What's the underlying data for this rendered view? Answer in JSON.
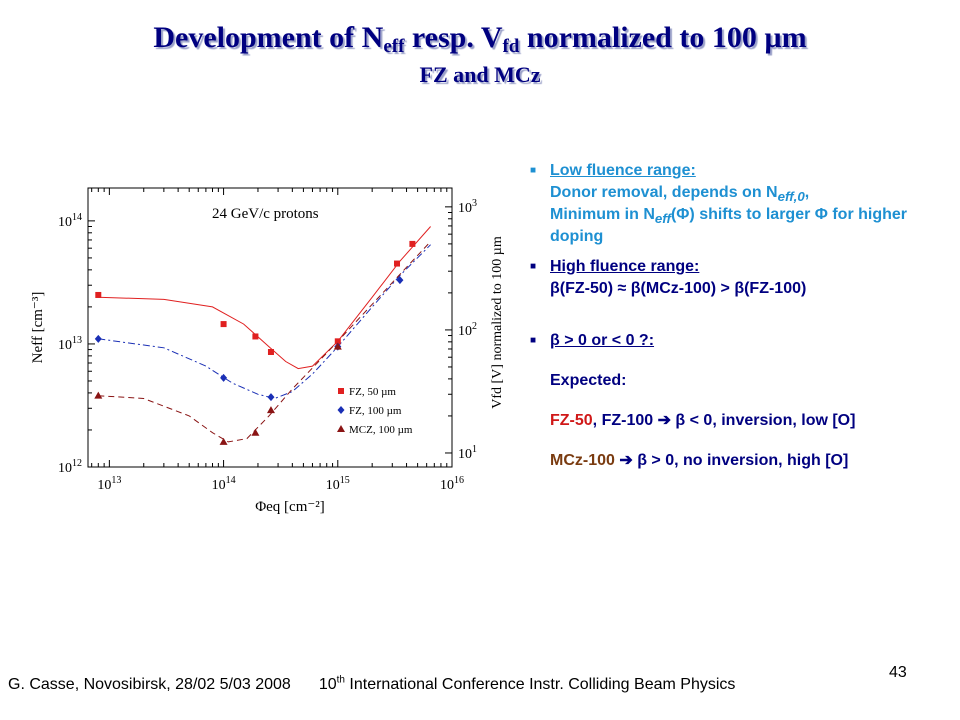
{
  "slide": {
    "title_pre": "Development of N",
    "title_sub1": "eff",
    "title_mid": " resp. V",
    "title_sub2": "fd",
    "title_post": " normalized to 100 µm",
    "subtitle": "FZ and MCz",
    "page_number": "43",
    "footer_author": "G. Casse, Novosibirsk, 28/02 5/03 2008",
    "footer_conf_pre": "10",
    "footer_conf_sup": "th",
    "footer_conf_post": " International Conference Instr. Colliding Beam Physics"
  },
  "bullets": {
    "low": {
      "heading": "Low fluence range:",
      "line1_pre": "Donor removal, depends on N",
      "line1_sub": "eff,0",
      "line1_post": ",",
      "line2_pre": "Minimum in N",
      "line2_sub": "eff",
      "line2_post": "(Φ) shifts to larger Φ for higher doping"
    },
    "high": {
      "heading": "High fluence range:",
      "text": "β(FZ-50) ≈ β(MCz-100) > β(FZ-100)"
    },
    "beta": {
      "heading": "β > 0 or < 0 ?:",
      "expected": "Expected:",
      "fz_label": "FZ-50",
      "fz_rest": ", FZ-100 ➔ β < 0, inversion, low [O]",
      "mcz_label": "MCz-100",
      "mcz_rest": " ➔ β > 0, no inversion, high [O]"
    }
  },
  "chart_data": {
    "type": "scatter",
    "annotation": "24 GeV/c protons",
    "xlabel": "Φeq [cm⁻²]",
    "ylabel": "Neff [cm⁻³]",
    "ylabel_right": "Vfd [V] normalized to 100 µm",
    "x_log": true,
    "y_log": true,
    "xlim": [
      6500000000000.0,
      1e+16
    ],
    "ylim": [
      1000000000000.0,
      185000000000000.0
    ],
    "x_ticks": [
      {
        "value": 10000000000000.0,
        "base": "10",
        "exp": "13"
      },
      {
        "value": 100000000000000.0,
        "base": "10",
        "exp": "14"
      },
      {
        "value": 1000000000000000.0,
        "base": "10",
        "exp": "15"
      },
      {
        "value": 1e+16,
        "base": "10",
        "exp": "16"
      }
    ],
    "y_ticks": [
      {
        "value": 1000000000000.0,
        "base": "10",
        "exp": "12"
      },
      {
        "value": 10000000000000.0,
        "base": "10",
        "exp": "13"
      },
      {
        "value": 100000000000000.0,
        "base": "10",
        "exp": "14"
      }
    ],
    "y2_ticks": [
      {
        "value": 1300000000000.0,
        "base": "10",
        "exp": "1"
      },
      {
        "value": 13000000000000.0,
        "base": "10",
        "exp": "2"
      },
      {
        "value": 130000000000000.0,
        "base": "10",
        "exp": "3"
      }
    ],
    "series": [
      {
        "name": "FZ, 50 µm",
        "color": "#e02020",
        "marker": "square",
        "line": "solid",
        "points": [
          [
            8000000000000.0,
            25000000000000.0
          ],
          [
            100000000000000.0,
            14500000000000.0
          ],
          [
            190000000000000.0,
            11500000000000.0
          ],
          [
            260000000000000.0,
            8600000000000.0
          ],
          [
            1000000000000000.0,
            10500000000000.0
          ],
          [
            3300000000000000.0,
            45000000000000.0
          ],
          [
            4500000000000000.0,
            65000000000000.0
          ]
        ],
        "fit": [
          [
            8000000000000.0,
            24000000000000.0
          ],
          [
            30000000000000.0,
            23000000000000.0
          ],
          [
            80000000000000.0,
            20000000000000.0
          ],
          [
            150000000000000.0,
            14500000000000.0
          ],
          [
            250000000000000.0,
            9500000000000.0
          ],
          [
            350000000000000.0,
            7200000000000.0
          ],
          [
            450000000000000.0,
            6300000000000.0
          ],
          [
            600000000000000.0,
            6600000000000.0
          ],
          [
            1000000000000000.0,
            10500000000000.0
          ],
          [
            2000000000000000.0,
            24000000000000.0
          ],
          [
            3500000000000000.0,
            47000000000000.0
          ],
          [
            6500000000000000.0,
            90000000000000.0
          ]
        ]
      },
      {
        "name": "FZ, 100 µm",
        "color": "#1a2fb5",
        "marker": "diamond",
        "line": "dashdot",
        "points": [
          [
            8000000000000.0,
            11000000000000.0
          ],
          [
            100000000000000.0,
            5300000000000.0
          ],
          [
            260000000000000.0,
            3700000000000.0
          ],
          [
            1000000000000000.0,
            9500000000000.0
          ],
          [
            3500000000000000.0,
            33000000000000.0
          ]
        ],
        "fit": [
          [
            8000000000000.0,
            11000000000000.0
          ],
          [
            30000000000000.0,
            9300000000000.0
          ],
          [
            70000000000000.0,
            6600000000000.0
          ],
          [
            120000000000000.0,
            4800000000000.0
          ],
          [
            200000000000000.0,
            3900000000000.0
          ],
          [
            280000000000000.0,
            3600000000000.0
          ],
          [
            400000000000000.0,
            4100000000000.0
          ],
          [
            600000000000000.0,
            5700000000000.0
          ],
          [
            1000000000000000.0,
            9500000000000.0
          ],
          [
            2000000000000000.0,
            20000000000000.0
          ],
          [
            3500000000000000.0,
            36000000000000.0
          ],
          [
            6500000000000000.0,
            64000000000000.0
          ]
        ]
      },
      {
        "name": "MCZ, 100 µm",
        "color": "#8a1414",
        "marker": "triangle",
        "line": "dashed",
        "points": [
          [
            8000000000000.0,
            3800000000000.0
          ],
          [
            100000000000000.0,
            1600000000000.0
          ],
          [
            190000000000000.0,
            1900000000000.0
          ],
          [
            260000000000000.0,
            2900000000000.0
          ],
          [
            1000000000000000.0,
            9500000000000.0
          ]
        ],
        "fit": [
          [
            8000000000000.0,
            3800000000000.0
          ],
          [
            20000000000000.0,
            3600000000000.0
          ],
          [
            50000000000000.0,
            2600000000000.0
          ],
          [
            80000000000000.0,
            1900000000000.0
          ],
          [
            110000000000000.0,
            1600000000000.0
          ],
          [
            160000000000000.0,
            1700000000000.0
          ],
          [
            250000000000000.0,
            2600000000000.0
          ],
          [
            400000000000000.0,
            4300000000000.0
          ],
          [
            700000000000000.0,
            7400000000000.0
          ],
          [
            1000000000000000.0,
            10500000000000.0
          ],
          [
            2000000000000000.0,
            21000000000000.0
          ],
          [
            4000000000000000.0,
            42000000000000.0
          ],
          [
            6500000000000000.0,
            68000000000000.0
          ]
        ]
      }
    ]
  }
}
